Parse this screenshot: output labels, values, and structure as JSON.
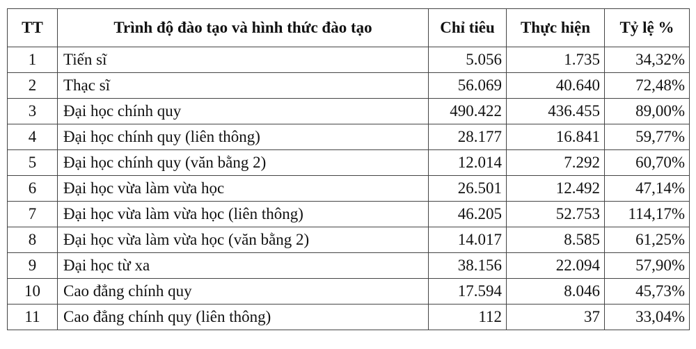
{
  "table": {
    "headers": [
      "TT",
      "Trình độ đào tạo và hình thức đào tạo",
      "Chỉ tiêu",
      "Thực hiện",
      "Tỷ lệ %"
    ],
    "rows": [
      [
        "1",
        "Tiến sĩ",
        "5.056",
        "1.735",
        "34,32%"
      ],
      [
        "2",
        "Thạc sĩ",
        "56.069",
        "40.640",
        "72,48%"
      ],
      [
        "3",
        "Đại học chính quy",
        "490.422",
        "436.455",
        "89,00%"
      ],
      [
        "4",
        "Đại học chính quy (liên thông)",
        "28.177",
        "16.841",
        "59,77%"
      ],
      [
        "5",
        "Đại học chính quy (văn bằng 2)",
        "12.014",
        "7.292",
        "60,70%"
      ],
      [
        "6",
        "Đại học vừa làm vừa học",
        "26.501",
        "12.492",
        "47,14%"
      ],
      [
        "7",
        "Đại học vừa làm vừa học (liên thông)",
        "46.205",
        "52.753",
        "114,17%"
      ],
      [
        "8",
        "Đại học vừa làm vừa học (văn bằng 2)",
        "14.017",
        "8.585",
        "61,25%"
      ],
      [
        "9",
        "Đại học từ xa",
        "38.156",
        "22.094",
        "57,90%"
      ],
      [
        "10",
        "Cao đẳng chính quy",
        "17.594",
        "8.046",
        "45,73%"
      ],
      [
        "11",
        "Cao đẳng chính quy (liên thông)",
        "112",
        "37",
        "33,04%"
      ]
    ]
  }
}
